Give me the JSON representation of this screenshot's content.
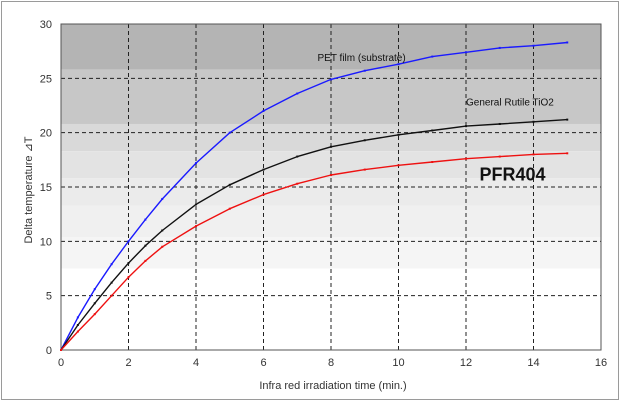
{
  "chart_data": {
    "type": "line",
    "xlabel": "Infra red irradiation time (min.)",
    "ylabel": "Delta temperature ⊿T",
    "xlim": [
      0,
      16
    ],
    "ylim": [
      0,
      30
    ],
    "xticks": [
      "0",
      "2",
      "4",
      "6",
      "8",
      "10",
      "12",
      "14",
      "16"
    ],
    "yticks": [
      "0",
      "5",
      "10",
      "15",
      "20",
      "25",
      "30"
    ],
    "grid": "dashed",
    "series": [
      {
        "name": "PET film (substrate)",
        "color": "#1a1aff",
        "x": [
          0,
          0.5,
          1,
          1.5,
          2,
          2.5,
          3,
          4,
          5,
          6,
          7,
          8,
          9,
          10,
          11,
          12,
          13,
          14,
          15
        ],
        "y": [
          0,
          3.0,
          5.6,
          7.9,
          10.0,
          12.0,
          13.9,
          17.2,
          20.0,
          22.0,
          23.6,
          24.9,
          25.7,
          26.3,
          27.0,
          27.4,
          27.8,
          28.0,
          28.3
        ]
      },
      {
        "name": "General Rutile TiO2",
        "color": "#111111",
        "x": [
          0,
          0.5,
          1,
          1.5,
          2,
          2.5,
          3,
          4,
          5,
          6,
          7,
          8,
          9,
          10,
          11,
          12,
          13,
          14,
          15
        ],
        "y": [
          0,
          2.3,
          4.3,
          6.2,
          8.0,
          9.6,
          11.0,
          13.4,
          15.2,
          16.6,
          17.8,
          18.7,
          19.3,
          19.8,
          20.2,
          20.6,
          20.8,
          21.0,
          21.2
        ]
      },
      {
        "name": "PFR404",
        "color": "#ee1111",
        "x": [
          0,
          0.5,
          1,
          1.5,
          2,
          2.5,
          3,
          4,
          5,
          6,
          7,
          8,
          9,
          10,
          11,
          12,
          13,
          14,
          15
        ],
        "y": [
          0,
          1.7,
          3.3,
          5.0,
          6.7,
          8.2,
          9.5,
          11.4,
          13.0,
          14.3,
          15.3,
          16.1,
          16.6,
          17.0,
          17.3,
          17.6,
          17.8,
          18.0,
          18.1
        ]
      }
    ],
    "annotations": [
      {
        "text": "PET film (substrate)",
        "x": 7.6,
        "y": 26.6
      },
      {
        "text": "General Rutile TiO2",
        "x": 12.0,
        "y": 22.5
      },
      {
        "text": "PFR404",
        "x": 12.4,
        "y": 15.6
      }
    ]
  }
}
